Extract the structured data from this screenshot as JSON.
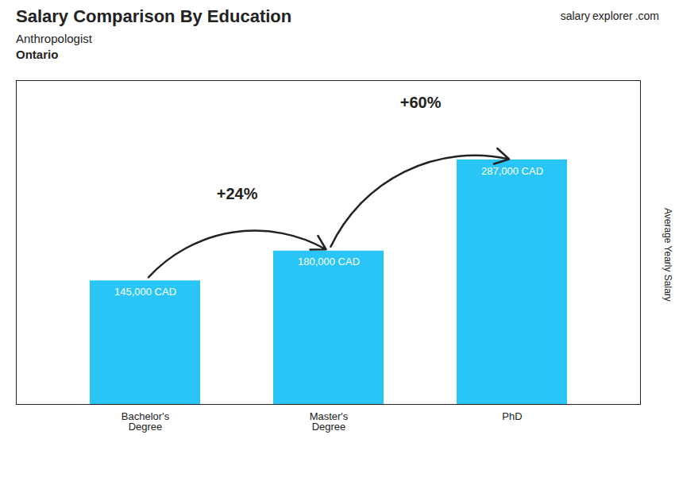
{
  "chart_data": {
    "type": "bar",
    "title": "Salary Comparison By Education",
    "subtitle": "Anthropologist",
    "location": "Ontario",
    "source": [
      "salary",
      "explorer",
      ".com"
    ],
    "ylabel": "Average Yearly Salary",
    "categories": [
      "Bachelor's\nDegree",
      "Master's\nDegree",
      "PhD"
    ],
    "values": [
      145000,
      180000,
      287000
    ],
    "value_labels": [
      "145,000 CAD",
      "180,000 CAD",
      "287,000 CAD"
    ],
    "data_labels": true,
    "annotations": [
      "+24%",
      "+60%"
    ],
    "color": "#29C5F6",
    "ylim": [
      0,
      380000
    ],
    "grid": false,
    "tick_labels": "x"
  }
}
